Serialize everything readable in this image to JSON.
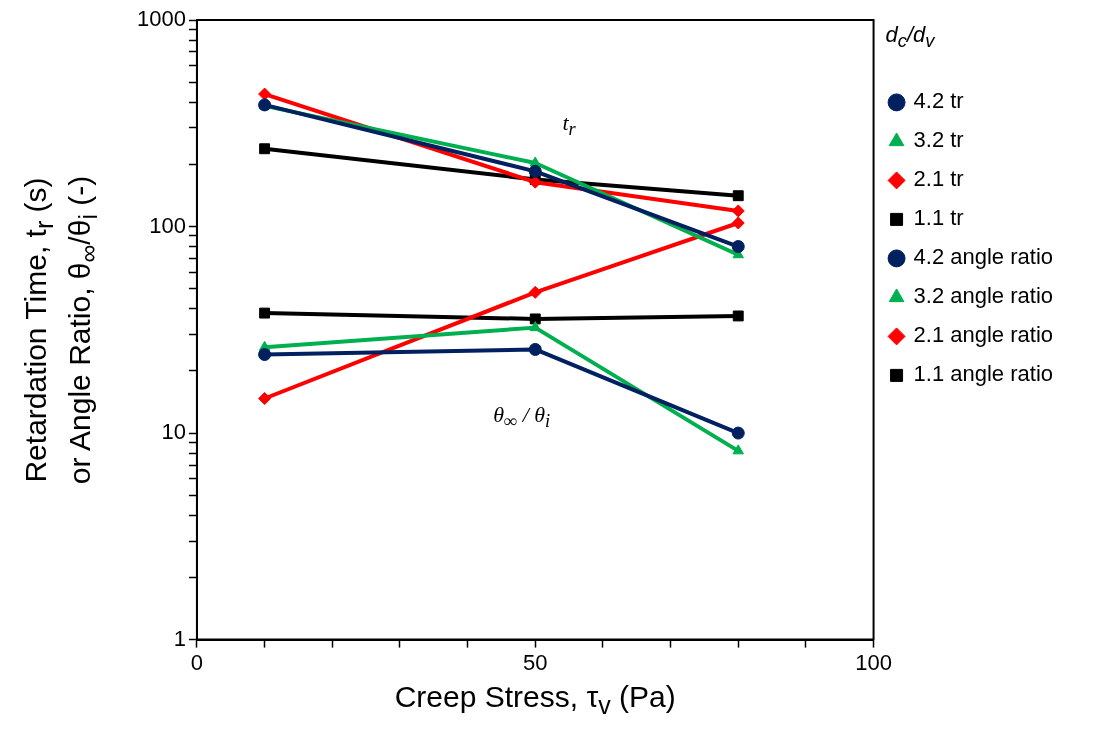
{
  "chart_data": {
    "type": "line",
    "xlabel": "Creep Stress, τ$_{v}$ (Pa)",
    "ylabel": "Retardation Time, t$_{r}$ (s)\nor Angle Ratio, θ$_{∞}$/θ$_{i}$ (-)",
    "legend_title": "d$_{c}$/d$_{v}$",
    "legend": "right",
    "log": "y",
    "grid": false,
    "line_style": "solid",
    "x": [
      10,
      50,
      80
    ],
    "xlim": [
      0,
      100
    ],
    "xticks": [
      0,
      {
        "value": 10,
        "label": null
      },
      {
        "value": 20,
        "label": null
      },
      {
        "value": 30,
        "label": null
      },
      {
        "value": 40,
        "label": null
      },
      50,
      {
        "value": 60,
        "label": null
      },
      {
        "value": 70,
        "label": null
      },
      {
        "value": 80,
        "label": null
      },
      {
        "value": 90,
        "label": null
      },
      100
    ],
    "ylim": [
      1,
      1000
    ],
    "yticks": [
      1,
      {
        "value": 2,
        "label": null
      },
      {
        "value": 3,
        "label": null
      },
      {
        "value": 4,
        "label": null
      },
      {
        "value": 5,
        "label": null
      },
      {
        "value": 6,
        "label": null
      },
      {
        "value": 7,
        "label": null
      },
      {
        "value": 8,
        "label": null
      },
      {
        "value": 9,
        "label": null
      },
      10,
      {
        "value": 20,
        "label": null
      },
      {
        "value": 30,
        "label": null
      },
      {
        "value": 40,
        "label": null
      },
      {
        "value": 50,
        "label": null
      },
      {
        "value": 60,
        "label": null
      },
      {
        "value": 70,
        "label": null
      },
      {
        "value": 80,
        "label": null
      },
      {
        "value": 90,
        "label": null
      },
      100,
      {
        "value": 200,
        "label": null
      },
      {
        "value": 300,
        "label": null
      },
      {
        "value": 400,
        "label": null
      },
      {
        "value": 500,
        "label": null
      },
      {
        "value": 600,
        "label": null
      },
      {
        "value": 700,
        "label": null
      },
      {
        "value": 800,
        "label": null
      },
      {
        "value": 900,
        "label": null
      },
      1000
    ],
    "annotations": [
      "t$_{r}$",
      "θ$_{∞}$ / θ$_{i}$"
    ],
    "series": [
      {
        "name": "4.2 tr",
        "color": "#002060",
        "marker": "circle",
        "values": [
          388,
          185,
          80
        ]
      },
      {
        "name": "3.2 tr",
        "color": "#00b050",
        "marker": "triangle",
        "values": [
          384,
          203,
          73
        ]
      },
      {
        "name": "2.1 tr",
        "color": "#ff0000",
        "marker": "diamond",
        "values": [
          438,
          164,
          119
        ]
      },
      {
        "name": "1.1 tr",
        "color": "#000000",
        "marker": "square",
        "values": [
          238,
          169,
          141
        ]
      },
      {
        "name": "4.2 angle ratio",
        "color": "#002060",
        "marker": "circle",
        "values": [
          24,
          25.4,
          10
        ]
      },
      {
        "name": "3.2 angle ratio",
        "color": "#00b050",
        "marker": "triangle",
        "values": [
          26,
          32.4,
          8.2
        ]
      },
      {
        "name": "2.1 angle ratio",
        "color": "#ff0000",
        "marker": "diamond",
        "values": [
          14.7,
          48,
          104
        ]
      },
      {
        "name": "1.1 angle ratio",
        "color": "#000000",
        "marker": "square",
        "values": [
          38.1,
          35.7,
          36.9
        ]
      }
    ]
  }
}
